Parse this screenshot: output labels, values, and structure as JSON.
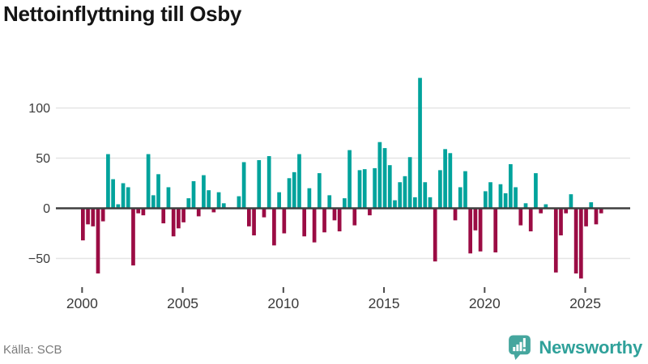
{
  "header": {
    "title": "Nettoinflyttning till Osby"
  },
  "footer": {
    "source_label": "Källa: SCB",
    "brand_name": "Newsworthy",
    "brand_color": "#2fa19a",
    "brand_icon": "bar-chart-speech-bubble-icon",
    "brand_icon_color": "#45a69e"
  },
  "colors": {
    "background": "#ffffff",
    "positive_bar": "#00a39c",
    "negative_bar": "#9b0c44",
    "gridline": "#e5e5e5",
    "zero_line": "#3f3f3f",
    "axis_text": "#3b3b3b",
    "title_text": "#151515",
    "source_text": "#7b7b7b"
  },
  "chart_data": {
    "type": "bar",
    "title": "Nettoinflyttning till Osby",
    "xlabel": "",
    "ylabel": "",
    "frequency": "quarterly",
    "start_year": 2000,
    "periods_per_year": 4,
    "start_period": "2000Q1",
    "end_period": "2025Q4",
    "grid": "horizontal",
    "legend": "none",
    "ylim": [
      -78,
      138
    ],
    "y_ticks": [
      100,
      50,
      0,
      -50
    ],
    "y_tick_labels": [
      "100",
      "50",
      "0",
      "−50"
    ],
    "x_tick_years": [
      2000,
      2005,
      2010,
      2015,
      2020,
      2025
    ],
    "x_tick_labels": [
      "2000",
      "2005",
      "2010",
      "2015",
      "2020",
      "2025"
    ],
    "positive_color": "#00a39c",
    "negative_color": "#9b0c44",
    "values": [
      -32,
      -16,
      -18,
      -65,
      -13,
      54,
      29,
      4,
      25,
      21,
      -57,
      -5,
      -7,
      54,
      13,
      34,
      -15,
      21,
      -28,
      -20,
      -14,
      10,
      27,
      -8,
      33,
      18,
      -4,
      16,
      5,
      0,
      0,
      12,
      46,
      -18,
      -27,
      48,
      -9,
      52,
      -37,
      16,
      -25,
      30,
      36,
      54,
      -28,
      20,
      -34,
      35,
      -24,
      13,
      -12,
      -23,
      10,
      58,
      -17,
      38,
      39,
      -7,
      40,
      66,
      60,
      43,
      8,
      26,
      32,
      51,
      11,
      130,
      26,
      11,
      -53,
      38,
      59,
      55,
      -12,
      21,
      37,
      -45,
      -22,
      -43,
      17,
      26,
      -44,
      24,
      15,
      44,
      21,
      -17,
      5,
      -23,
      35,
      -5,
      4,
      0,
      -64,
      -27,
      -5,
      14,
      -65,
      -70,
      -18,
      6,
      -16,
      -5
    ]
  }
}
